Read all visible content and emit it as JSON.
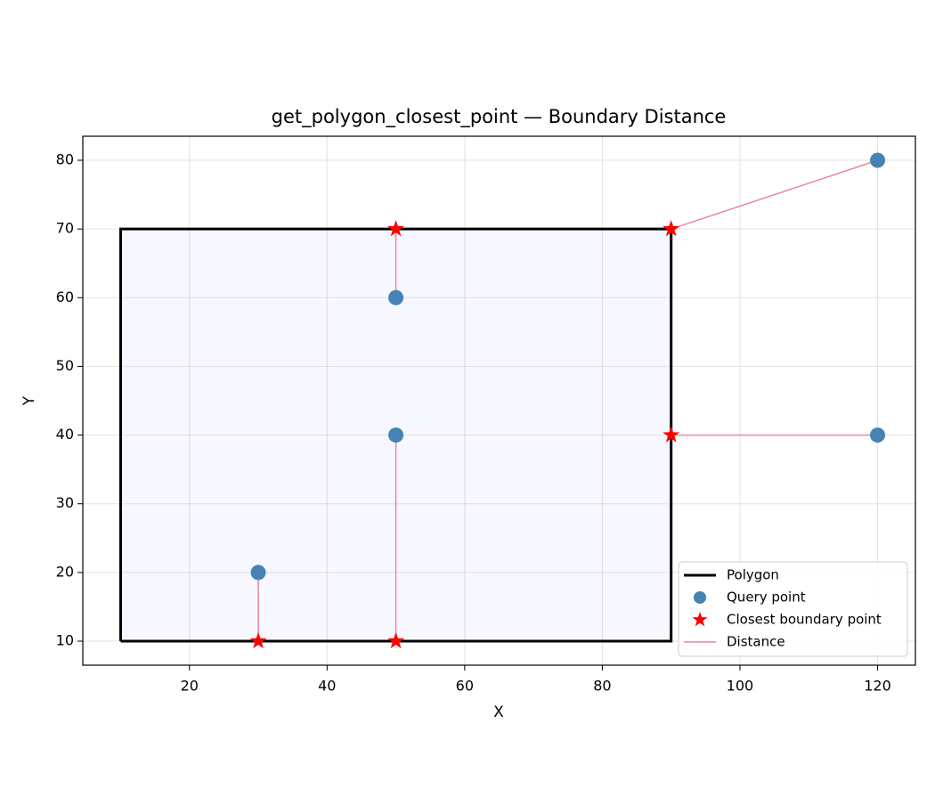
{
  "chart_data": {
    "type": "line",
    "title": "get_polygon_closest_point — Boundary Distance",
    "xlabel": "X",
    "ylabel": "Y",
    "xlim": [
      4.5,
      125.5
    ],
    "ylim": [
      6.5,
      83.5
    ],
    "xticks": [
      20,
      40,
      60,
      80,
      100,
      120
    ],
    "yticks": [
      10,
      20,
      30,
      40,
      50,
      60,
      70,
      80
    ],
    "grid": true,
    "legend": "lower right",
    "series": [
      {
        "name": "Polygon",
        "color": "#000000",
        "fill": "#f4f4ff",
        "linestyle": "solid",
        "marker": null,
        "linewidth": 3,
        "x": [
          10,
          90,
          90,
          10,
          10
        ],
        "y": [
          10,
          10,
          70,
          70,
          10
        ]
      },
      {
        "name": "Query point",
        "color": "#4682b4",
        "linestyle": "none",
        "marker": "circle",
        "x": [
          30,
          50,
          50,
          120,
          120
        ],
        "y": [
          20,
          40,
          60,
          40,
          80
        ]
      },
      {
        "name": "Closest boundary point",
        "color": "#ff0000",
        "linestyle": "none",
        "marker": "star",
        "x": [
          30,
          50,
          50,
          90,
          90
        ],
        "y": [
          10,
          10,
          70,
          40,
          70
        ]
      },
      {
        "name": "Distance",
        "color": "#e8889a",
        "linestyle": "solid",
        "marker": null,
        "linewidth": 1.5,
        "x": [
          30,
          30,
          null,
          50,
          50,
          null,
          50,
          50,
          null,
          120,
          90,
          null,
          120,
          90
        ],
        "y": [
          20,
          10,
          null,
          40,
          10,
          null,
          60,
          70,
          null,
          40,
          40,
          null,
          80,
          70
        ]
      }
    ]
  }
}
